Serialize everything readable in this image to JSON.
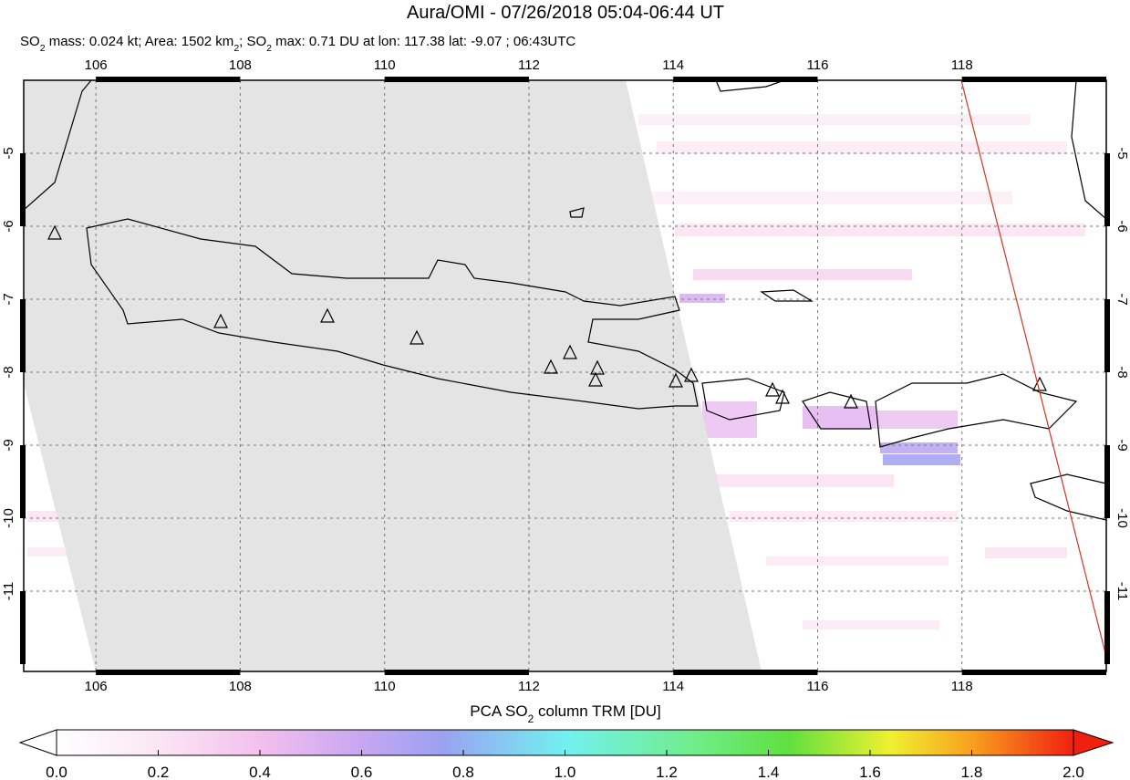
{
  "chart_data": {
    "type": "map",
    "title": "Aura/OMI - 07/26/2018 05:04-06:44 UT",
    "subtitle": [
      "SO",
      "2",
      " mass: 0.024 kt; Area: 1502 km",
      "2",
      "; SO",
      "2",
      " max: 0.71 DU at lon: 117.38 lat: -9.07 ; 06:43UTC"
    ],
    "xlim": [
      105,
      120
    ],
    "ylim": [
      -12.1,
      -4
    ],
    "xticks": [
      106,
      108,
      110,
      112,
      114,
      116,
      118
    ],
    "yticks": [
      -5,
      -6,
      -7,
      -8,
      -9,
      -10,
      -11
    ],
    "grid": true,
    "colorbar": {
      "label": [
        "PCA SO",
        "2",
        " column TRM [DU]"
      ],
      "lim": [
        0,
        2
      ],
      "ticks": [
        {
          "value": 0,
          "label": "0.0"
        },
        0.2,
        0.4,
        0.6,
        0.8,
        {
          "value": 1,
          "label": "1.0"
        },
        1.2,
        1.4,
        1.6,
        1.8,
        {
          "value": 2,
          "label": "2.0"
        }
      ]
    }
  }
}
